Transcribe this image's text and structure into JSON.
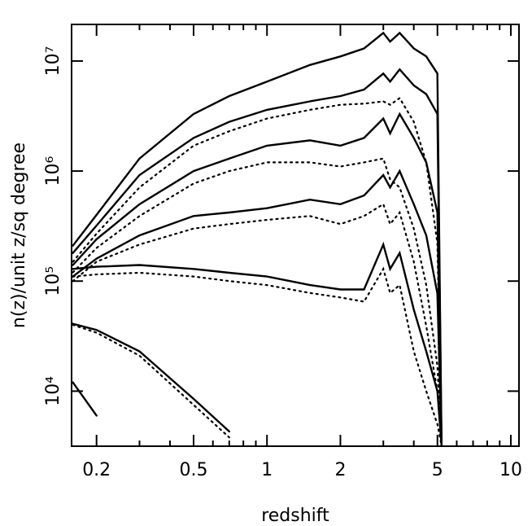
{
  "chart_data": {
    "type": "line",
    "xlabel": "redshift",
    "ylabel": "n(z)/unit z/sq degree",
    "xscale": "log",
    "yscale": "log",
    "xlim": [
      0.158,
      10.8
    ],
    "ylim": [
      3160,
      21500000
    ],
    "xticks": [
      0.2,
      0.5,
      1,
      2,
      5,
      10
    ],
    "xminorticks": [
      0.3,
      0.4,
      0.6,
      0.7,
      0.8,
      0.9,
      3,
      4,
      6,
      7,
      8,
      9
    ],
    "yticks": [
      {
        "value": 10000,
        "label": "10⁴"
      },
      {
        "value": 100000,
        "label": "10⁵"
      },
      {
        "value": 1000000,
        "label": "10⁶"
      },
      {
        "value": 10000000,
        "label": "10⁷"
      }
    ],
    "x": [
      0.16,
      0.2,
      0.3,
      0.5,
      0.7,
      1,
      1.5,
      2,
      2.5,
      3,
      3.2,
      3.5,
      4,
      4.5,
      5,
      5.2
    ],
    "series": [
      {
        "color": "#000000",
        "dash": "solid",
        "values": [
          210000,
          400000,
          1300000,
          3300000,
          4800000,
          6500000,
          9200000,
          11000000,
          13000000,
          18000000,
          15000000,
          18000000,
          13000000,
          11000000,
          7700000,
          3200
        ]
      },
      {
        "color": "#000000",
        "dash": "solid",
        "values": [
          180000,
          320000,
          920000,
          2000000,
          2800000,
          3600000,
          4300000,
          4800000,
          5500000,
          7700000,
          6500000,
          8400000,
          6000000,
          5000000,
          3300000,
          3200
        ]
      },
      {
        "color": "#000000",
        "dash": "dotted",
        "values": [
          150000,
          270000,
          710000,
          1700000,
          2300000,
          3000000,
          3600000,
          4000000,
          4100000,
          4300000,
          4000000,
          4600000,
          2800000,
          1200000,
          220000,
          3200
        ]
      },
      {
        "color": "#000000",
        "dash": "solid",
        "values": [
          140000,
          240000,
          500000,
          1000000,
          1300000,
          1700000,
          1900000,
          1700000,
          2000000,
          3000000,
          2200000,
          3300000,
          2000000,
          1200000,
          420000,
          3200
        ]
      },
      {
        "color": "#000000",
        "dash": "dotted",
        "values": [
          120000,
          200000,
          390000,
          770000,
          1000000,
          1200000,
          1200000,
          1100000,
          1200000,
          1300000,
          840000,
          710000,
          300000,
          92000,
          17000,
          3200
        ]
      },
      {
        "color": "#000000",
        "dash": "solid",
        "values": [
          110000,
          160000,
          260000,
          390000,
          420000,
          460000,
          550000,
          500000,
          600000,
          920000,
          710000,
          1000000,
          500000,
          260000,
          77000,
          3200
        ]
      },
      {
        "color": "#000000",
        "dash": "dotted",
        "values": [
          100000,
          150000,
          215000,
          300000,
          330000,
          360000,
          390000,
          330000,
          390000,
          500000,
          330000,
          420000,
          150000,
          39000,
          10000,
          3200
        ]
      },
      {
        "color": "#000000",
        "dash": "solid",
        "values": [
          129000,
          135000,
          140000,
          129000,
          119000,
          110000,
          92000,
          84000,
          84000,
          215000,
          129000,
          180000,
          55000,
          23000,
          10000,
          3200
        ]
      },
      {
        "color": "#000000",
        "dash": "dotted",
        "values": [
          110000,
          115000,
          119000,
          110000,
          100000,
          92000,
          78000,
          71000,
          65000,
          129000,
          78000,
          92000,
          23000,
          10000,
          5000,
          3200
        ]
      },
      {
        "color": "#000000",
        "dash": "solid",
        "values": [
          41000,
          36000,
          23000,
          8500,
          4300,
          null,
          null,
          null,
          null,
          null,
          null,
          null,
          null,
          null,
          null,
          null
        ]
      },
      {
        "color": "#000000",
        "dash": "dotted",
        "values": [
          40000,
          34000,
          21000,
          7500,
          3800,
          null,
          null,
          null,
          null,
          null,
          null,
          null,
          null,
          null,
          null,
          null
        ]
      },
      {
        "color": "#000000",
        "dash": "solid",
        "values": [
          12000,
          6000,
          null,
          null,
          null,
          null,
          null,
          null,
          null,
          null,
          null,
          null,
          null,
          null,
          null,
          null
        ]
      }
    ]
  }
}
